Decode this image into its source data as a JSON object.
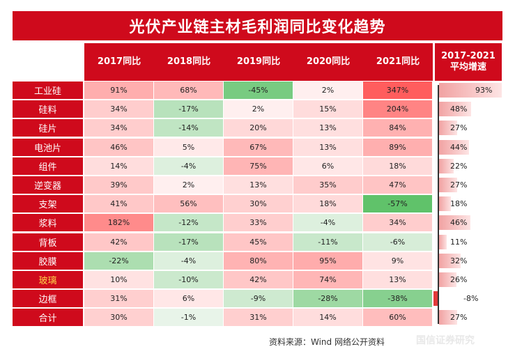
{
  "title": "光伏产业链主材毛利润同比变化趋势",
  "columns": [
    "2017同比",
    "2018同比",
    "2019同比",
    "2020同比",
    "2021同比"
  ],
  "avg_header_line1": "2017-2021",
  "avg_header_line2": "平均增速",
  "rows": [
    {
      "label": "工业硅",
      "values": [
        "91%",
        "68%",
        "-45%",
        "2%",
        "347%"
      ],
      "avg": "93%",
      "avg_num": 93
    },
    {
      "label": "硅料",
      "values": [
        "34%",
        "-17%",
        "2%",
        "15%",
        "204%"
      ],
      "avg": "48%",
      "avg_num": 48
    },
    {
      "label": "硅片",
      "values": [
        "34%",
        "-14%",
        "20%",
        "13%",
        "84%"
      ],
      "avg": "27%",
      "avg_num": 27
    },
    {
      "label": "电池片",
      "values": [
        "46%",
        "5%",
        "67%",
        "13%",
        "89%"
      ],
      "avg": "44%",
      "avg_num": 44
    },
    {
      "label": "组件",
      "values": [
        "14%",
        "-4%",
        "75%",
        "6%",
        "18%"
      ],
      "avg": "22%",
      "avg_num": 22
    },
    {
      "label": "逆变器",
      "values": [
        "39%",
        "2%",
        "13%",
        "35%",
        "47%"
      ],
      "avg": "27%",
      "avg_num": 27
    },
    {
      "label": "支架",
      "values": [
        "41%",
        "56%",
        "30%",
        "18%",
        "-57%"
      ],
      "avg": "18%",
      "avg_num": 18
    },
    {
      "label": "浆料",
      "values": [
        "182%",
        "-12%",
        "33%",
        "-4%",
        "34%"
      ],
      "avg": "46%",
      "avg_num": 46
    },
    {
      "label": "背板",
      "values": [
        "42%",
        "-17%",
        "45%",
        "-11%",
        "-6%"
      ],
      "avg": "11%",
      "avg_num": 11
    },
    {
      "label": "胶膜",
      "values": [
        "-22%",
        "-4%",
        "80%",
        "95%",
        "9%"
      ],
      "avg": "32%",
      "avg_num": 32
    },
    {
      "label": "玻璃",
      "values": [
        "10%",
        "-10%",
        "42%",
        "74%",
        "13%"
      ],
      "avg": "26%",
      "avg_num": 26
    },
    {
      "label": "边框",
      "values": [
        "31%",
        "6%",
        "-9%",
        "-28%",
        "-38%"
      ],
      "avg": "-8%",
      "avg_num": -8
    },
    {
      "label": "合计",
      "values": [
        "30%",
        "-1%",
        "31%",
        "14%",
        "60%"
      ],
      "avg": "27%",
      "avg_num": 27
    }
  ],
  "highlight_label_color": "#ffd24a",
  "header_color": "#cf0a1c",
  "source": "资料来源：Wind 网络公开资料",
  "watermark": "国信证券研究"
}
